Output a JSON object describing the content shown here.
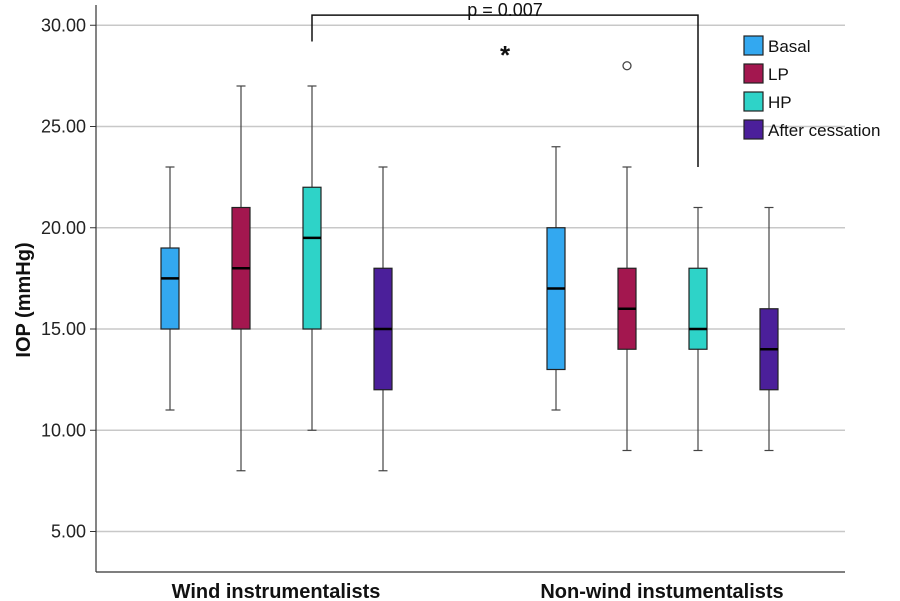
{
  "chart_data": {
    "type": "box",
    "ylabel": "IOP (mmHg)",
    "ylim": [
      3,
      31
    ],
    "yticks": [
      "5.00",
      "10.00",
      "15.00",
      "20.00",
      "25.00",
      "30.00"
    ],
    "grid": true,
    "legend_position": "top-right",
    "categories": [
      "Wind instrumentalists",
      "Non-wind instumentalists"
    ],
    "series": [
      {
        "name": "Basal",
        "color": "#33a8f0",
        "boxes": [
          {
            "min": 11,
            "q1": 15,
            "median": 17.5,
            "q3": 19,
            "max": 23,
            "outliers": []
          },
          {
            "min": 11,
            "q1": 13,
            "median": 17,
            "q3": 20,
            "max": 24,
            "outliers": []
          }
        ]
      },
      {
        "name": "LP",
        "color": "#a3174f",
        "boxes": [
          {
            "min": 8,
            "q1": 15,
            "median": 18,
            "q3": 21,
            "max": 27,
            "outliers": []
          },
          {
            "min": 9,
            "q1": 14,
            "median": 16,
            "q3": 18,
            "max": 23,
            "outliers": [
              28
            ]
          }
        ]
      },
      {
        "name": "HP",
        "color": "#2ed3c8",
        "boxes": [
          {
            "min": 10,
            "q1": 15,
            "median": 19.5,
            "q3": 22,
            "max": 27,
            "outliers": []
          },
          {
            "min": 9,
            "q1": 14,
            "median": 15,
            "q3": 18,
            "max": 21,
            "outliers": []
          }
        ]
      },
      {
        "name": "After cessation",
        "color": "#4b1f9a",
        "boxes": [
          {
            "min": 8,
            "q1": 12,
            "median": 15,
            "q3": 18,
            "max": 23,
            "outliers": []
          },
          {
            "min": 9,
            "q1": 12,
            "median": 14,
            "q3": 16,
            "max": 21,
            "outliers": []
          }
        ]
      }
    ],
    "annotations": {
      "p_value": "p = 0.007",
      "significance": "*",
      "bracket": {
        "from": {
          "category": 0,
          "series": 2
        },
        "to": {
          "category": 1,
          "series": 2
        },
        "y": 30.5
      }
    }
  }
}
